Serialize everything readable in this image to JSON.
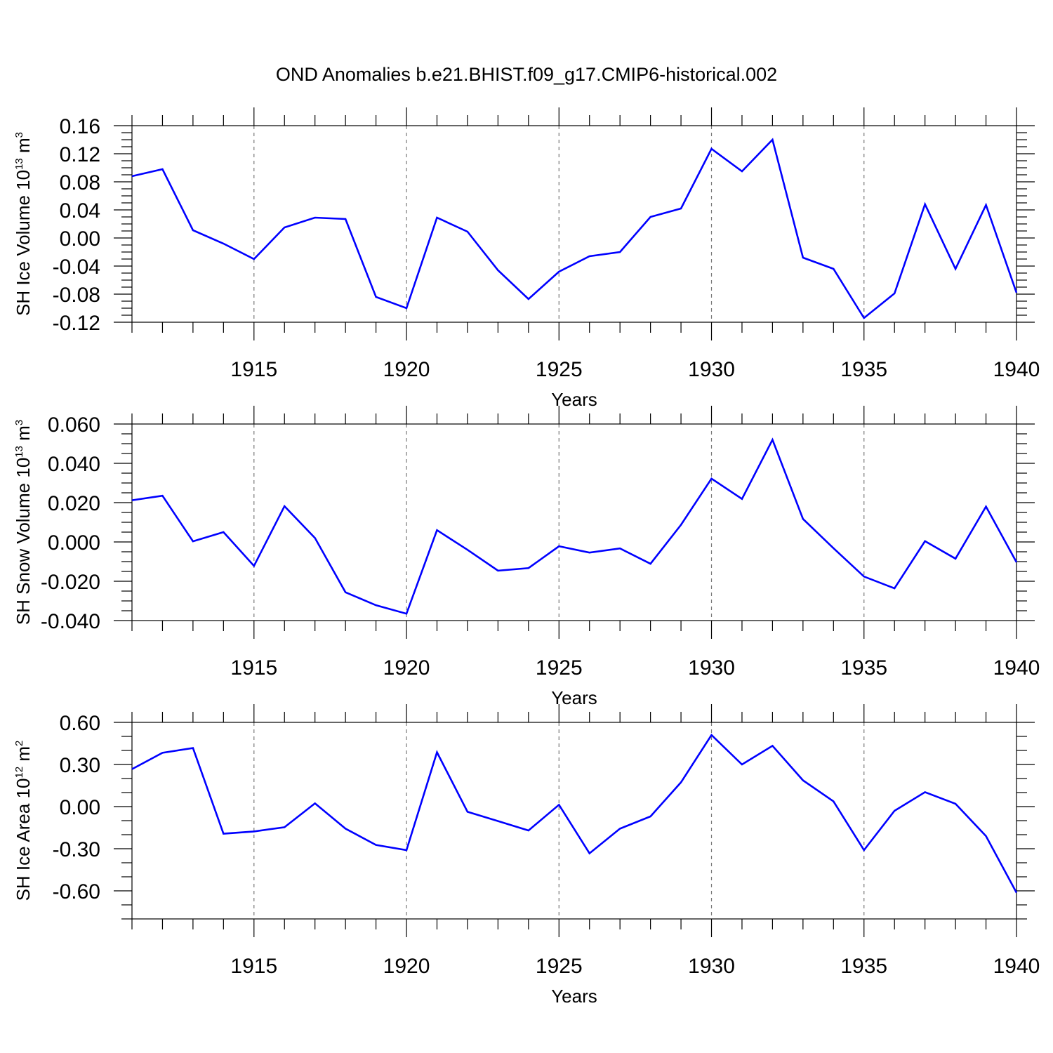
{
  "chart_data": [
    {
      "type": "line",
      "title": "OND Anomalies b.e21.BHIST.f09_g17.CMIP6-historical.002",
      "xlabel": "Years",
      "ylabel": "SH Ice Volume 10",
      "ylabel_exponent": "13",
      "ylabel_unit": " m",
      "ylabel_unit_exponent": "3",
      "xlim": [
        1911,
        1940
      ],
      "ylim": [
        -0.12,
        0.16
      ],
      "x_ticks": [
        1915,
        1920,
        1925,
        1930,
        1935,
        1940
      ],
      "y_ticks": [
        -0.12,
        -0.08,
        -0.04,
        0.0,
        0.04,
        0.08,
        0.12,
        0.16
      ],
      "y_tick_labels": [
        "-0.12",
        "-0.08",
        "-0.04",
        "0.00",
        "0.04",
        "0.08",
        "0.12",
        "0.16"
      ],
      "y_minor_step": 0.01,
      "color": "#0000ff",
      "x": [
        1911,
        1912,
        1913,
        1914,
        1915,
        1916,
        1917,
        1918,
        1919,
        1920,
        1921,
        1922,
        1923,
        1924,
        1925,
        1926,
        1927,
        1928,
        1929,
        1930,
        1931,
        1932,
        1933,
        1934,
        1935,
        1936,
        1937,
        1938,
        1939,
        1940
      ],
      "values": [
        0.088,
        0.098,
        0.011,
        -0.008,
        -0.03,
        0.015,
        0.029,
        0.027,
        -0.084,
        -0.1,
        0.029,
        0.009,
        -0.046,
        -0.087,
        -0.048,
        -0.026,
        -0.02,
        0.03,
        0.042,
        0.127,
        0.095,
        0.14,
        -0.028,
        -0.044,
        -0.114,
        -0.079,
        0.048,
        -0.044,
        0.047,
        -0.078
      ]
    },
    {
      "type": "line",
      "xlabel": "Years",
      "ylabel": "SH Snow Volume 10",
      "ylabel_exponent": "13",
      "ylabel_unit": " m",
      "ylabel_unit_exponent": "3",
      "xlim": [
        1911,
        1940
      ],
      "ylim": [
        -0.04,
        0.06
      ],
      "x_ticks": [
        1915,
        1920,
        1925,
        1930,
        1935,
        1940
      ],
      "y_ticks": [
        -0.04,
        -0.02,
        0.0,
        0.02,
        0.04,
        0.06
      ],
      "y_tick_labels": [
        "-0.040",
        "-0.020",
        "0.000",
        "0.020",
        "0.040",
        "0.060"
      ],
      "y_minor_step": 0.005,
      "color": "#0000ff",
      "x": [
        1911,
        1912,
        1913,
        1914,
        1915,
        1916,
        1917,
        1918,
        1919,
        1920,
        1921,
        1922,
        1923,
        1924,
        1925,
        1926,
        1927,
        1928,
        1929,
        1930,
        1931,
        1932,
        1933,
        1934,
        1935,
        1936,
        1937,
        1938,
        1939,
        1940
      ],
      "values": [
        0.0212,
        0.0235,
        0.0003,
        0.005,
        -0.0122,
        0.0182,
        0.002,
        -0.0256,
        -0.0322,
        -0.0365,
        0.006,
        -0.004,
        -0.0146,
        -0.0133,
        -0.0022,
        -0.0054,
        -0.0033,
        -0.0111,
        0.0087,
        0.0322,
        0.0219,
        0.052,
        0.0117,
        -0.0032,
        -0.0176,
        -0.0236,
        0.0004,
        -0.0085,
        0.018,
        -0.0103
      ]
    },
    {
      "type": "line",
      "xlabel": "Years",
      "ylabel": "SH Ice Area 10",
      "ylabel_exponent": "12",
      "ylabel_unit": " m",
      "ylabel_unit_exponent": "2",
      "xlim": [
        1911,
        1940
      ],
      "ylim": [
        -0.8,
        0.6
      ],
      "x_ticks": [
        1915,
        1920,
        1925,
        1930,
        1935,
        1940
      ],
      "y_ticks": [
        -0.6,
        -0.3,
        0.0,
        0.3,
        0.6
      ],
      "y_tick_labels": [
        "-0.60",
        "-0.30",
        "0.00",
        "0.30",
        "0.60"
      ],
      "y_minor_step": 0.1,
      "color": "#0000ff",
      "x": [
        1911,
        1912,
        1913,
        1914,
        1915,
        1916,
        1917,
        1918,
        1919,
        1920,
        1921,
        1922,
        1923,
        1924,
        1925,
        1926,
        1927,
        1928,
        1929,
        1930,
        1931,
        1932,
        1933,
        1934,
        1935,
        1936,
        1937,
        1938,
        1939,
        1940
      ],
      "values": [
        0.267,
        0.383,
        0.417,
        -0.193,
        -0.177,
        -0.147,
        0.023,
        -0.157,
        -0.273,
        -0.31,
        0.387,
        -0.037,
        -0.103,
        -0.17,
        0.013,
        -0.333,
        -0.157,
        -0.07,
        0.173,
        0.51,
        0.3,
        0.433,
        0.187,
        0.037,
        -0.31,
        -0.03,
        0.103,
        0.02,
        -0.21,
        -0.613
      ]
    }
  ]
}
